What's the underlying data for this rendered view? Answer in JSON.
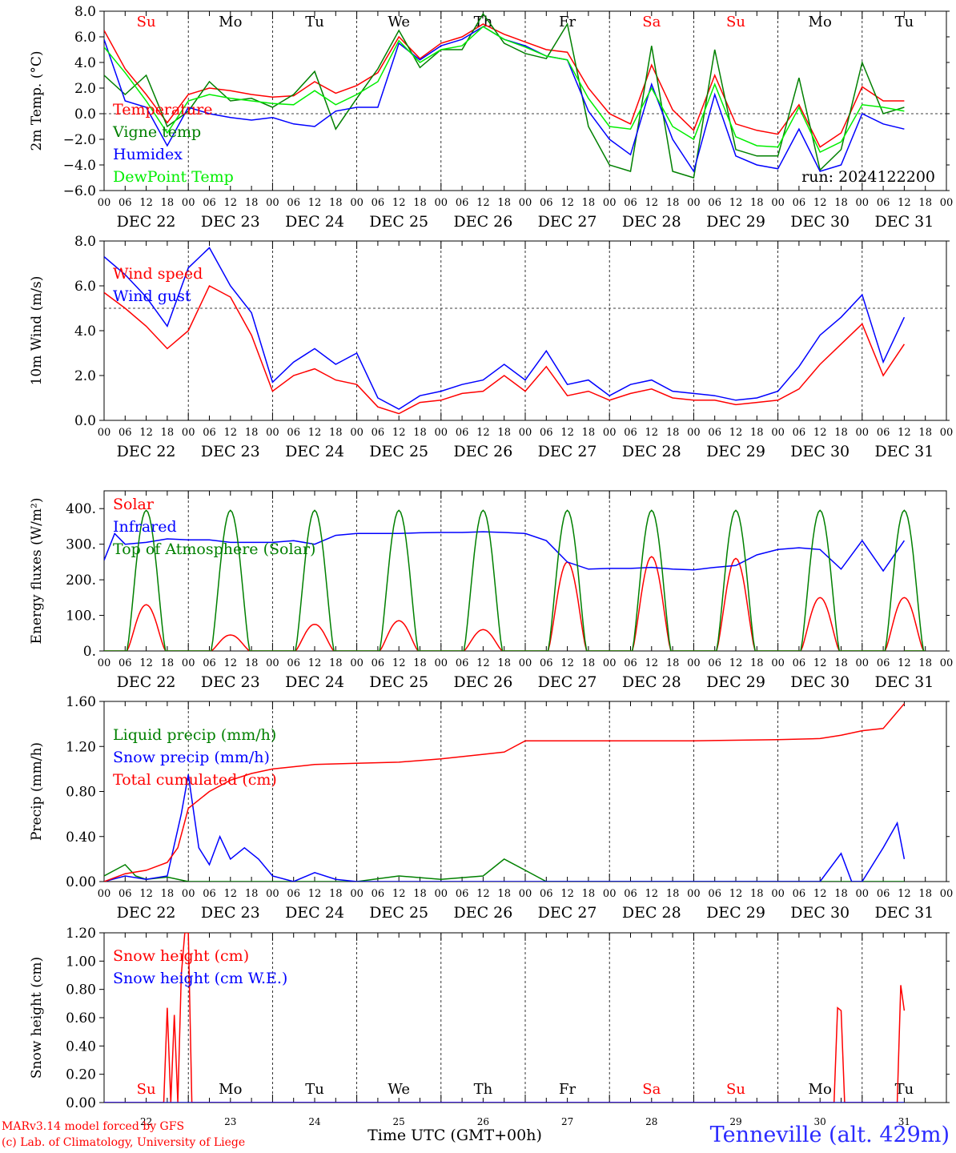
{
  "credits": {
    "model": "MARv3.14 model forced by GFS",
    "lab": "(c) Lab. of Climatology, University of Liege"
  },
  "station": "Tenneville (alt. 429m)",
  "xaxis_title": "Time UTC (GMT+00h)",
  "run_label": "run: 2024122200",
  "hour_ticks": [
    "00",
    "06",
    "12",
    "18"
  ],
  "date_labels": [
    "DEC 22",
    "DEC 23",
    "DEC 24",
    "DEC 25",
    "DEC 26",
    "DEC 27",
    "DEC 28",
    "DEC 29",
    "DEC 30",
    "DEC 31"
  ],
  "weekdays": [
    "Su",
    "Mo",
    "Tu",
    "We",
    "Th",
    "Fr",
    "Sa",
    "Su",
    "Mo",
    "Tu"
  ],
  "day_numbers": [
    "22",
    "23",
    "24",
    "25",
    "26",
    "27",
    "28",
    "29",
    "30",
    "31"
  ],
  "colors": {
    "red": "#ff0000",
    "green": "#008000",
    "blue": "#0000ff",
    "lightgreen": "#00ee00",
    "black": "#000000",
    "weekend": "#ff0000"
  },
  "chart_data": [
    {
      "type": "line",
      "ylabel": "2m Temp. (°C)",
      "ylim": [
        -6,
        8
      ],
      "ticks": [
        "8.0",
        "6.0",
        "4.0",
        "2.0",
        "0.0",
        "−2.0",
        "−4.0",
        "−6.0"
      ],
      "tick_values": [
        8,
        6,
        4,
        2,
        0,
        -2,
        -4,
        -6
      ],
      "ref_line": 0,
      "x_unit": "hours since DEC 22 00 UTC",
      "series": [
        {
          "name": "Temperature",
          "color": "#ff0000",
          "x": [
            0,
            6,
            12,
            18,
            24,
            30,
            36,
            42,
            48,
            54,
            60,
            66,
            72,
            78,
            84,
            90,
            96,
            102,
            108,
            114,
            120,
            126,
            132,
            138,
            144,
            150,
            156,
            162,
            168,
            174,
            180,
            186,
            192,
            198,
            204,
            210,
            216,
            222,
            228
          ],
          "y": [
            6.5,
            3.5,
            1.5,
            -0.7,
            1.5,
            2.0,
            1.8,
            1.5,
            1.3,
            1.4,
            2.5,
            1.6,
            2.2,
            3.2,
            6.0,
            4.3,
            5.5,
            6.0,
            7.0,
            6.2,
            5.6,
            5.0,
            4.8,
            2.0,
            0.0,
            -0.8,
            3.8,
            0.3,
            -1.3,
            3.0,
            -0.8,
            -1.3,
            -1.6,
            0.7,
            -2.6,
            -1.5,
            2.1,
            1.0,
            1.0
          ]
        },
        {
          "name": "Vigne temp",
          "color": "#008000",
          "x": [
            0,
            6,
            12,
            18,
            24,
            30,
            36,
            42,
            48,
            54,
            60,
            66,
            72,
            78,
            84,
            90,
            96,
            102,
            108,
            114,
            120,
            126,
            132,
            138,
            144,
            150,
            156,
            162,
            168,
            174,
            180,
            186,
            192,
            198,
            204,
            210,
            216,
            222,
            228
          ],
          "y": [
            3.0,
            1.5,
            3.0,
            -1.0,
            0.2,
            2.5,
            1.0,
            1.2,
            0.5,
            1.5,
            3.3,
            -1.2,
            1.2,
            3.5,
            6.5,
            3.6,
            5.0,
            5.0,
            7.8,
            5.5,
            4.7,
            4.3,
            7.0,
            -1.0,
            -4.0,
            -4.5,
            5.3,
            -4.5,
            -5.0,
            5.0,
            -2.8,
            -3.3,
            -3.3,
            2.8,
            -4.4,
            -2.8,
            4.0,
            0.0,
            0.5
          ]
        },
        {
          "name": "Humidex",
          "color": "#0000ff",
          "x": [
            0,
            6,
            12,
            18,
            24,
            30,
            36,
            42,
            48,
            54,
            60,
            66,
            72,
            78,
            84,
            90,
            96,
            102,
            108,
            114,
            120,
            126,
            132,
            138,
            144,
            150,
            156,
            162,
            168,
            174,
            180,
            186,
            192,
            198,
            204,
            210,
            216,
            222,
            228
          ],
          "y": [
            5.8,
            1.0,
            0.5,
            -2.5,
            0.5,
            0.0,
            -0.3,
            -0.5,
            -0.3,
            -0.8,
            -1.0,
            0.2,
            0.5,
            0.5,
            5.5,
            4.2,
            5.3,
            5.8,
            6.8,
            5.8,
            5.3,
            4.5,
            4.2,
            0.2,
            -2.0,
            -3.2,
            2.3,
            -2.0,
            -4.5,
            1.5,
            -3.3,
            -4.0,
            -4.3,
            -1.2,
            -4.5,
            -4.0,
            0.0,
            -0.8,
            -1.2
          ]
        },
        {
          "name": "DewPoint Temp",
          "color": "#00ee00",
          "x": [
            0,
            6,
            12,
            18,
            24,
            30,
            36,
            42,
            48,
            54,
            60,
            66,
            72,
            78,
            84,
            90,
            96,
            102,
            108,
            114,
            120,
            126,
            132,
            138,
            144,
            150,
            156,
            162,
            168,
            174,
            180,
            186,
            192,
            198,
            204,
            210,
            216,
            222,
            228
          ],
          "y": [
            5.2,
            3.2,
            1.0,
            -1.5,
            1.0,
            1.5,
            1.2,
            1.0,
            0.8,
            0.7,
            1.8,
            0.7,
            1.5,
            2.5,
            5.7,
            4.0,
            5.0,
            5.3,
            6.8,
            5.8,
            5.2,
            4.5,
            4.2,
            1.2,
            -1.0,
            -1.2,
            2.0,
            -1.0,
            -2.0,
            2.3,
            -1.8,
            -2.5,
            -2.6,
            0.5,
            -3.0,
            -2.2,
            0.7,
            0.5,
            0.2
          ]
        }
      ]
    },
    {
      "type": "line",
      "ylabel": "10m Wind (m/s)",
      "ylim": [
        0,
        8
      ],
      "ticks": [
        "8.0",
        "6.0",
        "4.0",
        "2.0",
        "0.0"
      ],
      "tick_values": [
        8,
        6,
        4,
        2,
        0
      ],
      "ref_line": 5,
      "series": [
        {
          "name": "Wind speed",
          "color": "#ff0000",
          "x": [
            0,
            6,
            12,
            18,
            24,
            30,
            36,
            42,
            48,
            54,
            60,
            66,
            72,
            78,
            84,
            90,
            96,
            102,
            108,
            114,
            120,
            126,
            132,
            138,
            144,
            150,
            156,
            162,
            168,
            174,
            180,
            186,
            192,
            198,
            204,
            210,
            216,
            222,
            228
          ],
          "y": [
            5.7,
            5.0,
            4.2,
            3.2,
            4.0,
            6.0,
            5.5,
            3.8,
            1.3,
            2.0,
            2.3,
            1.8,
            1.6,
            0.6,
            0.3,
            0.8,
            0.9,
            1.2,
            1.3,
            2.0,
            1.3,
            2.4,
            1.1,
            1.3,
            0.9,
            1.2,
            1.4,
            1.0,
            0.9,
            0.9,
            0.7,
            0.8,
            0.9,
            1.4,
            2.5,
            3.4,
            4.3,
            2.0,
            3.4
          ]
        },
        {
          "name": "Wind gust",
          "color": "#0000ff",
          "x": [
            0,
            6,
            12,
            18,
            24,
            30,
            36,
            42,
            48,
            54,
            60,
            66,
            72,
            78,
            84,
            90,
            96,
            102,
            108,
            114,
            120,
            126,
            132,
            138,
            144,
            150,
            156,
            162,
            168,
            174,
            180,
            186,
            192,
            198,
            204,
            210,
            216,
            222,
            228
          ],
          "y": [
            7.3,
            6.5,
            5.5,
            4.2,
            6.8,
            7.7,
            6.0,
            4.8,
            1.7,
            2.6,
            3.2,
            2.5,
            3.0,
            1.0,
            0.5,
            1.1,
            1.3,
            1.6,
            1.8,
            2.5,
            1.8,
            3.1,
            1.6,
            1.8,
            1.1,
            1.6,
            1.8,
            1.3,
            1.2,
            1.1,
            0.9,
            1.0,
            1.3,
            2.4,
            3.8,
            4.6,
            5.6,
            2.6,
            4.6
          ]
        }
      ]
    },
    {
      "type": "line",
      "ylabel": "Energy fluxes (W/m²)",
      "ylim": [
        0,
        450
      ],
      "ticks": [
        "400.",
        "300.",
        "200.",
        "100.",
        "0."
      ],
      "tick_values": [
        400,
        300,
        200,
        100,
        0
      ],
      "series": [
        {
          "name": "Solar",
          "color": "#ff0000",
          "peaks": [
            130,
            45,
            75,
            85,
            60,
            250,
            265,
            260,
            150,
            150
          ]
        },
        {
          "name": "Infrared",
          "color": "#0000ff",
          "x": [
            0,
            3,
            6,
            12,
            18,
            24,
            30,
            36,
            42,
            48,
            54,
            60,
            66,
            72,
            78,
            84,
            90,
            96,
            102,
            108,
            114,
            120,
            126,
            132,
            138,
            144,
            150,
            156,
            162,
            168,
            174,
            180,
            186,
            192,
            198,
            204,
            210,
            216,
            222,
            228
          ],
          "y": [
            255,
            330,
            300,
            305,
            315,
            312,
            312,
            305,
            305,
            305,
            310,
            300,
            325,
            330,
            330,
            330,
            332,
            333,
            333,
            335,
            333,
            330,
            310,
            250,
            230,
            232,
            232,
            235,
            230,
            228,
            235,
            240,
            270,
            285,
            290,
            285,
            230,
            310,
            225,
            310
          ]
        },
        {
          "name": "Top of Atmosphere (Solar)",
          "color": "#008000",
          "peaks": [
            395,
            395,
            395,
            395,
            395,
            395,
            395,
            395,
            395,
            395
          ]
        }
      ]
    },
    {
      "type": "line",
      "ylabel": "Precip (mm/h)",
      "ylim": [
        0,
        1.6
      ],
      "ticks": [
        "1.60",
        "1.20",
        "0.80",
        "0.40",
        "0.00"
      ],
      "tick_values": [
        1.6,
        1.2,
        0.8,
        0.4,
        0.0
      ],
      "series": [
        {
          "name": "Liquid precip (mm/h)",
          "color": "#008000",
          "x": [
            0,
            3,
            6,
            9,
            12,
            18,
            24,
            36,
            60,
            72,
            84,
            96,
            108,
            114,
            120,
            126,
            132,
            150,
            180,
            204,
            210,
            222,
            228
          ],
          "y": [
            0.05,
            0.1,
            0.15,
            0.05,
            0.02,
            0.04,
            0.0,
            0.0,
            0.0,
            0.0,
            0.05,
            0.02,
            0.05,
            0.2,
            0.1,
            0.0,
            0.0,
            0.0,
            0.0,
            0.0,
            0.0,
            0.0,
            0.0
          ]
        },
        {
          "name": "Snow precip (mm/h)",
          "color": "#0000ff",
          "x": [
            0,
            6,
            12,
            18,
            22,
            24,
            27,
            30,
            33,
            36,
            40,
            44,
            48,
            54,
            60,
            66,
            72,
            96,
            192,
            204,
            210,
            213,
            216,
            222,
            226,
            228
          ],
          "y": [
            0.0,
            0.05,
            0.02,
            0.05,
            0.6,
            0.95,
            0.3,
            0.15,
            0.4,
            0.2,
            0.3,
            0.2,
            0.05,
            0.0,
            0.08,
            0.02,
            0.0,
            0.0,
            0.0,
            0.0,
            0.25,
            0.0,
            0.0,
            0.3,
            0.52,
            0.2
          ]
        },
        {
          "name": "Total cumulated (cm)",
          "color": "#ff0000",
          "x": [
            0,
            6,
            12,
            18,
            21,
            24,
            30,
            36,
            42,
            48,
            60,
            72,
            84,
            96,
            108,
            114,
            120,
            132,
            150,
            168,
            192,
            204,
            210,
            216,
            222,
            228
          ],
          "y": [
            0.0,
            0.07,
            0.1,
            0.17,
            0.3,
            0.65,
            0.8,
            0.9,
            0.96,
            1.0,
            1.04,
            1.05,
            1.06,
            1.09,
            1.13,
            1.15,
            1.25,
            1.25,
            1.25,
            1.25,
            1.26,
            1.27,
            1.3,
            1.34,
            1.36,
            1.58
          ]
        }
      ]
    },
    {
      "type": "line",
      "ylabel": "Snow height (cm)",
      "ylim": [
        0,
        1.2
      ],
      "ticks": [
        "1.20",
        "1.00",
        "0.80",
        "0.60",
        "0.40",
        "0.20",
        "0.00"
      ],
      "tick_values": [
        1.2,
        1.0,
        0.8,
        0.6,
        0.4,
        0.2,
        0.0
      ],
      "series": [
        {
          "name": "Snow height (cm)",
          "color": "#ff0000",
          "x": [
            0,
            17,
            18,
            19,
            20,
            21,
            22,
            23,
            24,
            25,
            208,
            209,
            210,
            211,
            226,
            227,
            228
          ],
          "y": [
            0,
            0,
            0.67,
            0,
            0.62,
            0,
            0.9,
            1.2,
            1.2,
            0,
            0,
            0.67,
            0.65,
            0,
            0,
            0.83,
            0.65
          ]
        },
        {
          "name": "Snow height (cm W.E.)",
          "color": "#0000ff",
          "x": [
            0,
            228
          ],
          "y": [
            0,
            0
          ]
        }
      ]
    }
  ]
}
